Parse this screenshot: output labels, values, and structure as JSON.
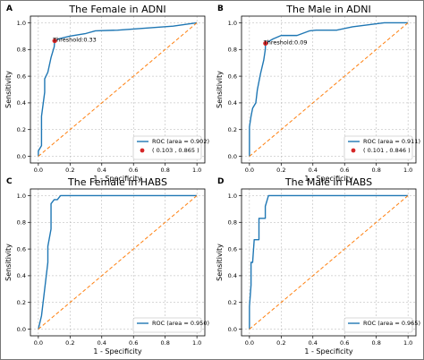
{
  "colors": {
    "roc": "#1f77b4",
    "diagonal": "#ff7f0e",
    "point": "#d62728",
    "grid": "#b0b0b0"
  },
  "chart_data": [
    {
      "panel": "A",
      "type": "line",
      "title": "The Female in ADNI",
      "xlabel": "1 - Specificity",
      "ylabel": "Sensitivity",
      "xlim": [
        -0.05,
        1.05
      ],
      "ylim": [
        -0.05,
        1.05
      ],
      "xticks": [
        "0.0",
        "0.2",
        "0.4",
        "0.6",
        "0.8",
        "1.0"
      ],
      "yticks": [
        "0.0",
        "0.2",
        "0.4",
        "0.6",
        "0.8",
        "1.0"
      ],
      "grid": true,
      "legend_position": "lower-right",
      "series": [
        {
          "name": "ROC (area = 0.902)",
          "kind": "roc",
          "x": [
            0,
            0,
            0.02,
            0.02,
            0.04,
            0.04,
            0.06,
            0.08,
            0.1,
            0.103,
            0.13,
            0.2,
            0.3,
            0.36,
            0.5,
            0.85,
            1.0
          ],
          "y": [
            0,
            0.04,
            0.08,
            0.3,
            0.48,
            0.58,
            0.63,
            0.74,
            0.82,
            0.865,
            0.88,
            0.9,
            0.92,
            0.94,
            0.945,
            0.975,
            1.0
          ]
        },
        {
          "name": "",
          "kind": "diagonal",
          "x": [
            0,
            1
          ],
          "y": [
            0,
            1
          ]
        },
        {
          "name": "( 0.103 , 0.865 )",
          "kind": "point",
          "x": [
            0.103
          ],
          "y": [
            0.865
          ]
        }
      ],
      "annotation": {
        "text": "Threshold:0.33",
        "x": 0.103,
        "y": 0.865
      }
    },
    {
      "panel": "B",
      "type": "line",
      "title": "The Male in ADNI",
      "xlabel": "1 - Specificity",
      "ylabel": "Sensitivity",
      "xlim": [
        -0.05,
        1.05
      ],
      "ylim": [
        -0.05,
        1.05
      ],
      "xticks": [
        "0.0",
        "0.2",
        "0.4",
        "0.6",
        "0.8",
        "1.0"
      ],
      "yticks": [
        "0.0",
        "0.2",
        "0.4",
        "0.6",
        "0.8",
        "1.0"
      ],
      "grid": true,
      "legend_position": "lower-right",
      "series": [
        {
          "name": "ROC (area = 0.911)",
          "kind": "roc",
          "x": [
            0,
            0,
            0.01,
            0.02,
            0.04,
            0.05,
            0.07,
            0.09,
            0.1,
            0.101,
            0.12,
            0.15,
            0.2,
            0.3,
            0.38,
            0.42,
            0.55,
            0.65,
            0.85,
            1.0
          ],
          "y": [
            0,
            0.22,
            0.3,
            0.36,
            0.4,
            0.5,
            0.62,
            0.72,
            0.8,
            0.846,
            0.86,
            0.88,
            0.905,
            0.905,
            0.94,
            0.945,
            0.945,
            0.97,
            1.0,
            1.0
          ]
        },
        {
          "name": "",
          "kind": "diagonal",
          "x": [
            0,
            1
          ],
          "y": [
            0,
            1
          ]
        },
        {
          "name": "( 0.101 , 0.846 )",
          "kind": "point",
          "x": [
            0.101
          ],
          "y": [
            0.846
          ]
        }
      ],
      "annotation": {
        "text": "Threshold:0.09",
        "x": 0.101,
        "y": 0.846
      }
    },
    {
      "panel": "C",
      "type": "line",
      "title": "The Female in HABS",
      "xlabel": "1 - Specificity",
      "ylabel": "Sensitivity",
      "xlim": [
        -0.05,
        1.05
      ],
      "ylim": [
        -0.05,
        1.05
      ],
      "xticks": [
        "0.0",
        "0.2",
        "0.4",
        "0.6",
        "0.8",
        "1.0"
      ],
      "yticks": [
        "0.0",
        "0.2",
        "0.4",
        "0.6",
        "0.8",
        "1.0"
      ],
      "grid": true,
      "legend_position": "lower-right",
      "series": [
        {
          "name": "ROC (area = 0.950)",
          "kind": "roc",
          "x": [
            0,
            0.02,
            0.04,
            0.06,
            0.06,
            0.08,
            0.08,
            0.1,
            0.1,
            0.12,
            0.14,
            1.0
          ],
          "y": [
            0,
            0.1,
            0.3,
            0.5,
            0.62,
            0.75,
            0.94,
            0.97,
            0.97,
            0.97,
            1.0,
            1.0
          ]
        },
        {
          "name": "",
          "kind": "diagonal",
          "x": [
            0,
            1
          ],
          "y": [
            0,
            1
          ]
        }
      ]
    },
    {
      "panel": "D",
      "type": "line",
      "title": "The Male in HABS",
      "xlabel": "1 - Specificity",
      "ylabel": "Sensitivity",
      "xlim": [
        -0.05,
        1.05
      ],
      "ylim": [
        -0.05,
        1.05
      ],
      "xticks": [
        "0.0",
        "0.2",
        "0.4",
        "0.6",
        "0.8",
        "1.0"
      ],
      "yticks": [
        "0.0",
        "0.2",
        "0.4",
        "0.6",
        "0.8",
        "1.0"
      ],
      "grid": true,
      "legend_position": "lower-right",
      "series": [
        {
          "name": "ROC (area = 0.965)",
          "kind": "roc",
          "x": [
            0,
            0,
            0.01,
            0.01,
            0.02,
            0.02,
            0.03,
            0.05,
            0.06,
            0.06,
            0.1,
            0.1,
            0.12,
            1.0
          ],
          "y": [
            0,
            0.17,
            0.33,
            0.5,
            0.5,
            0.5,
            0.67,
            0.67,
            0.67,
            0.83,
            0.83,
            0.92,
            1.0,
            1.0
          ]
        },
        {
          "name": "",
          "kind": "diagonal",
          "x": [
            0,
            1
          ],
          "y": [
            0,
            1
          ]
        }
      ]
    }
  ]
}
